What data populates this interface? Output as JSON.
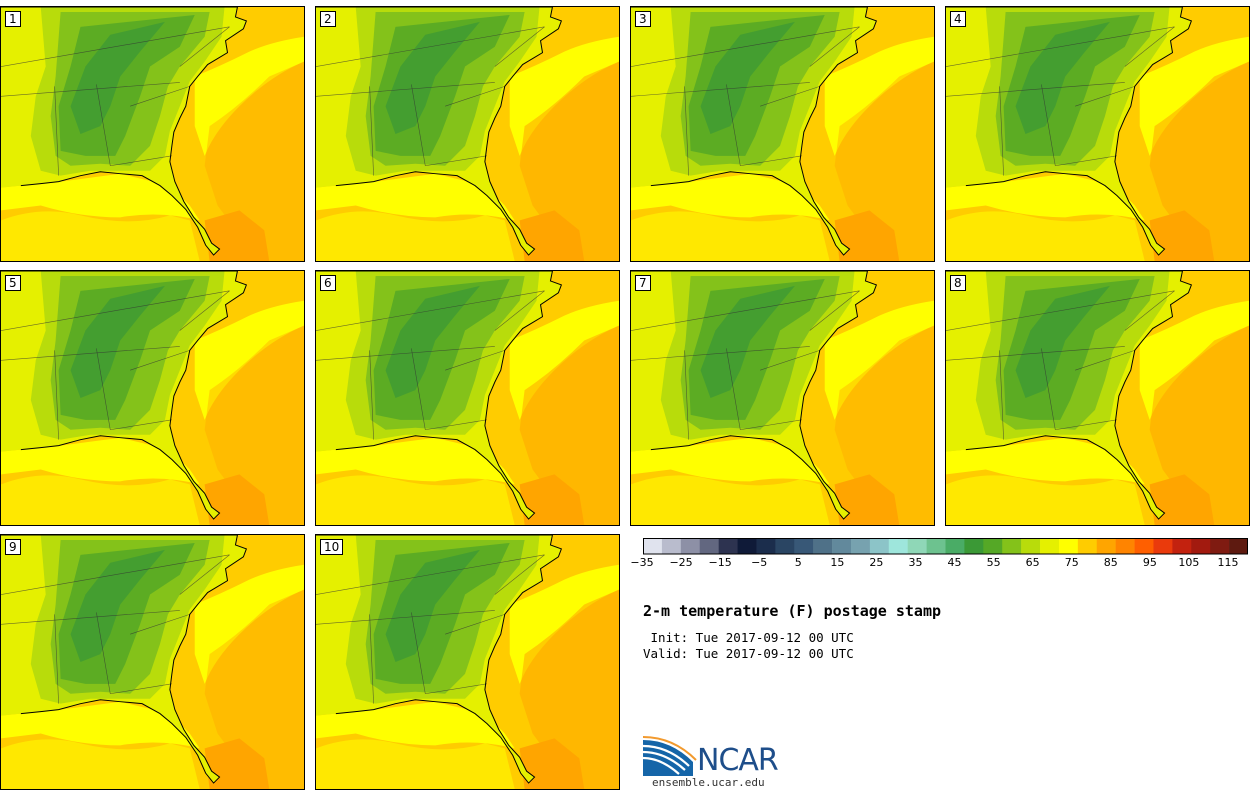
{
  "panels": [
    {
      "label": "1"
    },
    {
      "label": "2"
    },
    {
      "label": "3"
    },
    {
      "label": "4"
    },
    {
      "label": "5"
    },
    {
      "label": "6"
    },
    {
      "label": "7"
    },
    {
      "label": "8"
    },
    {
      "label": "9"
    },
    {
      "label": "10"
    }
  ],
  "colorbar": {
    "colors": [
      "#e0e3ee",
      "#b9bccd",
      "#8d90a6",
      "#626780",
      "#2d3350",
      "#0f1a38",
      "#1b2d4c",
      "#2a4563",
      "#385877",
      "#4f7188",
      "#62899c",
      "#77a2af",
      "#8cc4c8",
      "#9ee6dc",
      "#8fd7b7",
      "#6dc28f",
      "#4aac66",
      "#3b9936",
      "#55a826",
      "#84c21a",
      "#b8dc0b",
      "#e5f000",
      "#ffff00",
      "#ffcc00",
      "#ffa500",
      "#ff8400",
      "#ff5f00",
      "#ea3a0c",
      "#c3220f",
      "#a21a0f",
      "#7f1b11",
      "#5e1a10"
    ],
    "ticks": [
      "−35",
      "−25",
      "−15",
      "−5",
      "5",
      "15",
      "25",
      "35",
      "45",
      "55",
      "65",
      "75",
      "85",
      "95",
      "105",
      "115"
    ]
  },
  "title": "2-m temperature (F) postage stamp",
  "init_line": " Init: Tue 2017-09-12 00 UTC",
  "valid_line": "Valid: Tue 2017-09-12 00 UTC",
  "logo": {
    "name": "NCAR",
    "url": "ensemble.ucar.edu"
  },
  "map_colors": {
    "ocean": "#ffcc00",
    "warm_ocean": "#ffa500",
    "land_base": "#e5f000",
    "land_mid": "#b8dc0b",
    "land_cool": "#84c21a",
    "land_coolest": "#55a826",
    "coast_yellow": "#ffff00"
  }
}
